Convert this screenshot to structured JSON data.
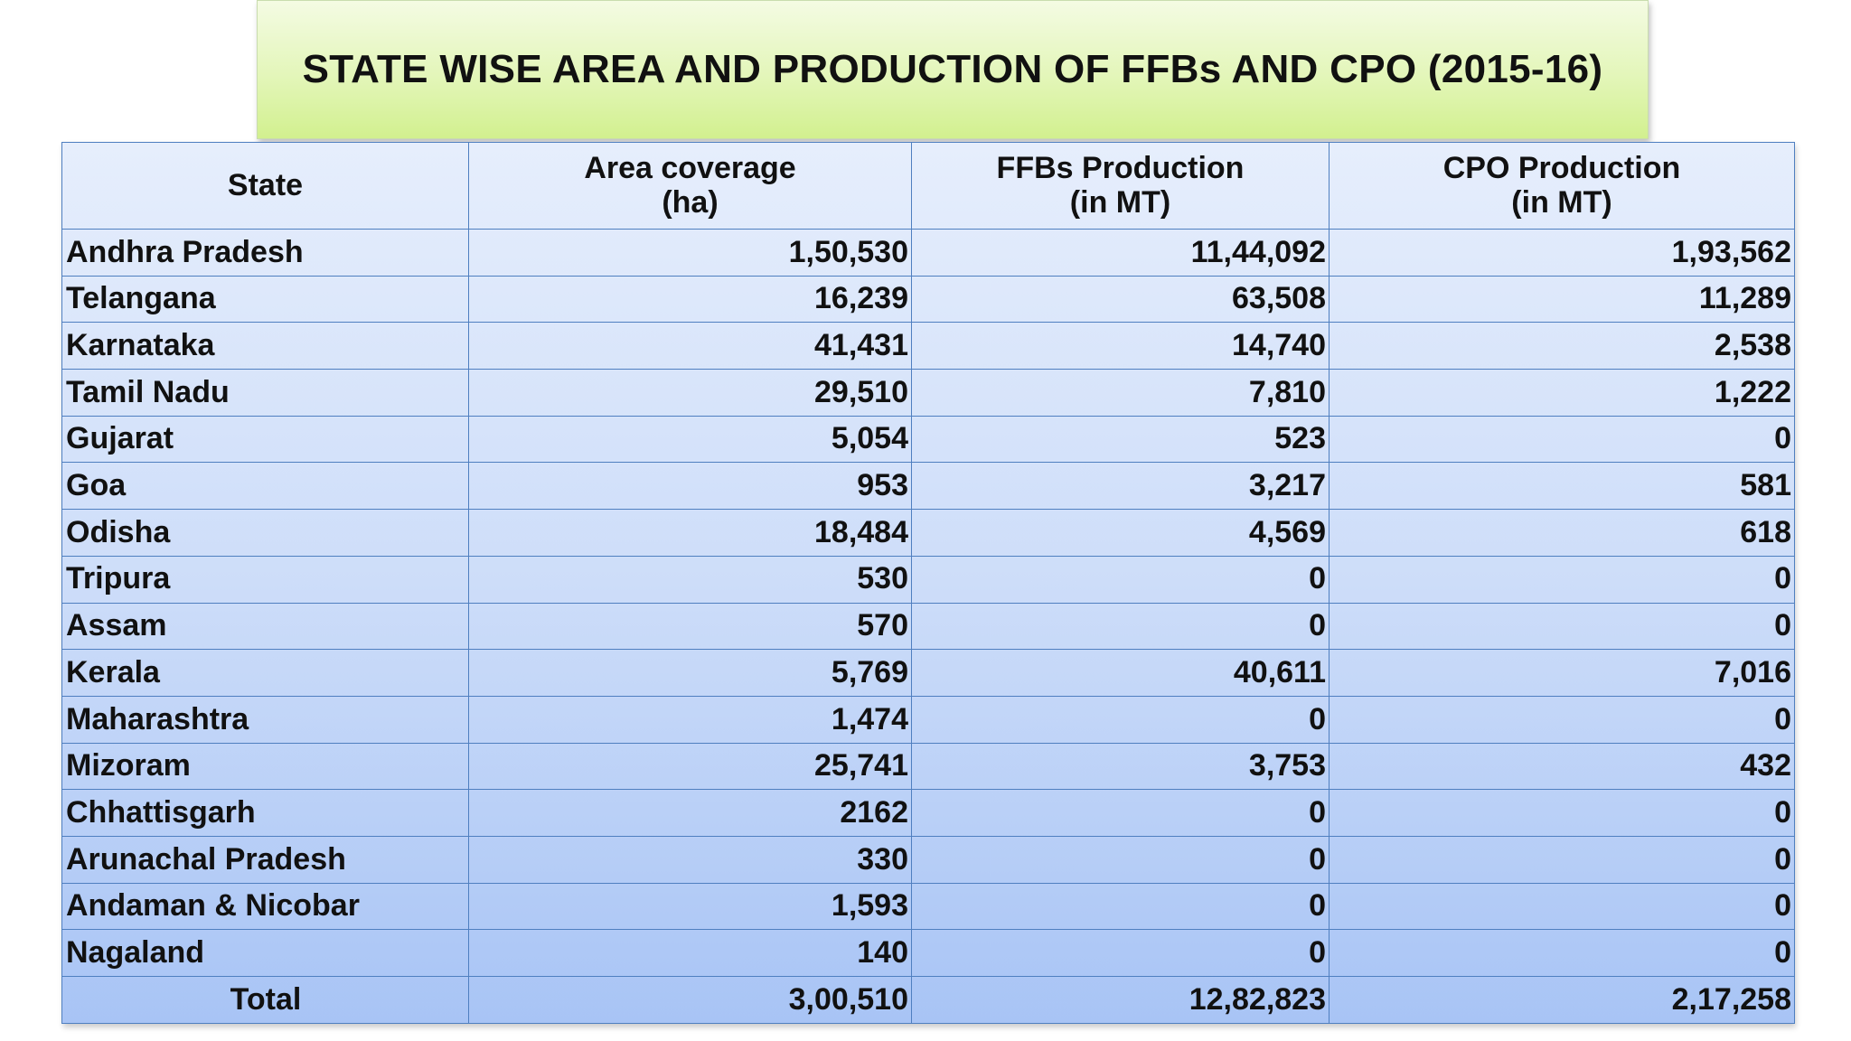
{
  "title": "STATE WISE AREA AND PRODUCTION OF FFBs AND CPO (2015-16)",
  "headers": {
    "state": "State",
    "area_line1": "Area coverage",
    "area_line2": "(ha)",
    "ffb_line1": "FFBs Production",
    "ffb_line2": "(in MT)",
    "cpo_line1": "CPO Production",
    "cpo_line2": "(in MT)"
  },
  "rows": [
    {
      "state": "Andhra Pradesh",
      "area": "1,50,530",
      "ffb": "11,44,092",
      "cpo": "1,93,562"
    },
    {
      "state": "Telangana",
      "area": "16,239",
      "ffb": "63,508",
      "cpo": "11,289"
    },
    {
      "state": "Karnataka",
      "area": "41,431",
      "ffb": "14,740",
      "cpo": "2,538"
    },
    {
      "state": "Tamil Nadu",
      "area": "29,510",
      "ffb": "7,810",
      "cpo": "1,222"
    },
    {
      "state": "Gujarat",
      "area": "5,054",
      "ffb": "523",
      "cpo": "0"
    },
    {
      "state": "Goa",
      "area": "953",
      "ffb": "3,217",
      "cpo": "581"
    },
    {
      "state": "Odisha",
      "area": "18,484",
      "ffb": "4,569",
      "cpo": "618"
    },
    {
      "state": "Tripura",
      "area": "530",
      "ffb": "0",
      "cpo": "0"
    },
    {
      "state": "Assam",
      "area": "570",
      "ffb": "0",
      "cpo": "0"
    },
    {
      "state": "Kerala",
      "area": "5,769",
      "ffb": "40,611",
      "cpo": "7,016"
    },
    {
      "state": "Maharashtra",
      "area": "1,474",
      "ffb": "0",
      "cpo": "0"
    },
    {
      "state": "Mizoram",
      "area": "25,741",
      "ffb": "3,753",
      "cpo": "432"
    },
    {
      "state": "Chhattisgarh",
      "area": "2162",
      "ffb": "0",
      "cpo": "0"
    },
    {
      "state": "Arunachal Pradesh",
      "area": "330",
      "ffb": "0",
      "cpo": "0"
    },
    {
      "state": "Andaman & Nicobar",
      "area": "1,593",
      "ffb": "0",
      "cpo": "0"
    },
    {
      "state": "Nagaland",
      "area": "140",
      "ffb": "0",
      "cpo": "0"
    }
  ],
  "total": {
    "label": "Total",
    "area": "3,00,510",
    "ffb": "12,82,823",
    "cpo": "2,17,258"
  }
}
